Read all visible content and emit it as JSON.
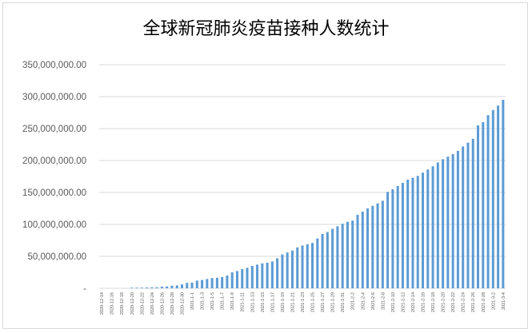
{
  "chart_data": {
    "type": "bar",
    "title": "全球新冠肺炎疫苗接种人数统计",
    "ylim": [
      0,
      350000000
    ],
    "yticks": [
      0,
      50000000,
      100000000,
      150000000,
      200000000,
      250000000,
      300000000,
      350000000
    ],
    "ytick_labels": [
      "-",
      "50,000,000.00",
      "100,000,000.00",
      "150,000,000.00",
      "200,000,000.00",
      "250,000,000.00",
      "300,000,000.00",
      "350,000,000.00"
    ],
    "grid": true,
    "bar_color": "#5b9bd5",
    "categories": [
      "2020-12-14",
      "2020-12-15",
      "2020-12-16",
      "2020-12-17",
      "2020-12-18",
      "2020-12-19",
      "2020-12-20",
      "2020-12-21",
      "2020-12-22",
      "2020-12-23",
      "2020-12-24",
      "2020-12-25",
      "2020-12-26",
      "2020-12-27",
      "2020-12-28",
      "2020-12-29",
      "2020-12-30",
      "2020-12-31",
      "2021-1-1",
      "2021-1-2",
      "2021-1-3",
      "2021-1-4",
      "2021-1-5",
      "2021-1-6",
      "2021-1-7",
      "2021-1-8",
      "2021-1-9",
      "2021-1-10",
      "2021-1-11",
      "2021-1-12",
      "2021-1-13",
      "2021-1-14",
      "2021-1-15",
      "2021-1-16",
      "2021-1-17",
      "2021-1-18",
      "2021-1-19",
      "2021-1-20",
      "2021-1-21",
      "2021-1-22",
      "2021-1-23",
      "2021-1-24",
      "2021-1-25",
      "2021-1-26",
      "2021-1-27",
      "2021-1-28",
      "2021-1-29",
      "2021-1-30",
      "2021-1-31",
      "2021-2-1",
      "2021-2-2",
      "2021-2-3",
      "2021-2-4",
      "2021-2-5",
      "2021-2-6",
      "2021-2-7",
      "2021-2-8",
      "2021-2-9",
      "2021-2-10",
      "2021-2-11",
      "2021-2-12",
      "2021-2-13",
      "2021-2-14",
      "2021-2-15",
      "2021-2-16",
      "2021-2-17",
      "2021-2-18",
      "2021-2-19",
      "2021-2-20",
      "2021-2-21",
      "2021-2-22",
      "2021-2-23",
      "2021-2-24",
      "2021-2-25",
      "2021-2-26",
      "2021-2-27",
      "2021-2-28",
      "2021-3-1",
      "2021-3-2",
      "2021-3-3",
      "2021-3-4"
    ],
    "values": [
      0,
      0,
      0,
      0,
      0,
      0,
      1000000,
      1000000,
      1000000,
      1200000,
      1500000,
      1600000,
      2500000,
      2800000,
      4000000,
      4500000,
      6000000,
      8500000,
      8800000,
      12000000,
      13000000,
      14500000,
      16000000,
      16500000,
      17500000,
      20000000,
      25000000,
      27000000,
      30000000,
      32000000,
      35000000,
      37000000,
      39000000,
      40000000,
      42000000,
      47000000,
      53000000,
      56000000,
      59000000,
      64000000,
      67000000,
      69000000,
      71000000,
      78000000,
      85000000,
      88000000,
      93000000,
      97000000,
      101000000,
      104000000,
      106000000,
      115000000,
      120000000,
      125000000,
      129000000,
      133000000,
      137000000,
      151000000,
      155000000,
      160000000,
      165000000,
      170000000,
      173000000,
      176000000,
      181000000,
      186000000,
      191000000,
      197000000,
      202000000,
      206000000,
      210000000,
      215000000,
      222000000,
      228000000,
      234000000,
      255000000,
      260000000,
      271000000,
      279000000,
      286000000,
      295000000
    ]
  }
}
